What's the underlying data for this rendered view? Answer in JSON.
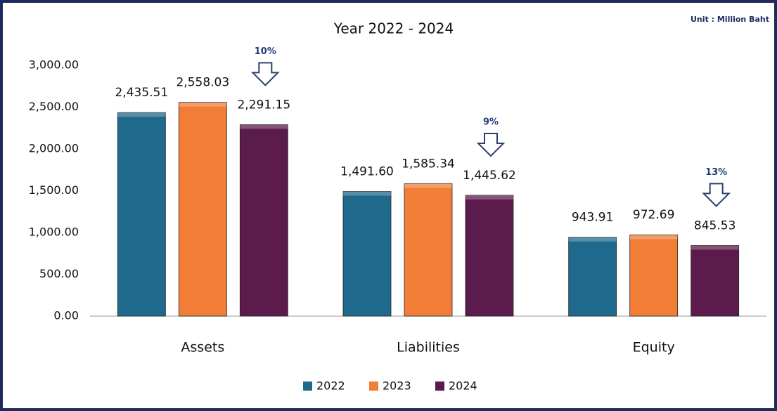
{
  "chart_data": {
    "type": "bar",
    "title": "Year 2022 - 2024",
    "unit": "Unit : Million Baht",
    "categories": [
      "Assets",
      "Liabilities",
      "Equity"
    ],
    "series": [
      {
        "name": "2022",
        "color": "#1f6a8c",
        "values": [
          2435.51,
          1491.6,
          943.91
        ],
        "value_labels": [
          "2,435.51",
          "1,491.60",
          "943.91"
        ]
      },
      {
        "name": "2023",
        "color": "#f27d36",
        "values": [
          2558.03,
          1585.34,
          972.69
        ],
        "value_labels": [
          "2,558.03",
          "1,585.34",
          "972.69"
        ]
      },
      {
        "name": "2024",
        "color": "#5b1b4d",
        "values": [
          2291.15,
          1445.62,
          845.53
        ],
        "value_labels": [
          "2,291.15",
          "1,445.62",
          "845.53"
        ]
      }
    ],
    "annotations": [
      "10%",
      "9%",
      "13%"
    ],
    "ylim": [
      0,
      3000
    ],
    "yticks": [
      {
        "value": 0,
        "label": "0.00"
      },
      {
        "value": 500,
        "label": "500.00"
      },
      {
        "value": 1000,
        "label": "1,000.00"
      },
      {
        "value": 1500,
        "label": "1,500.00"
      },
      {
        "value": 2000,
        "label": "2,000.00"
      },
      {
        "value": 2500,
        "label": "2,500.00"
      },
      {
        "value": 3000,
        "label": "3,000.00"
      }
    ],
    "grid": false,
    "legend": "bottom"
  }
}
